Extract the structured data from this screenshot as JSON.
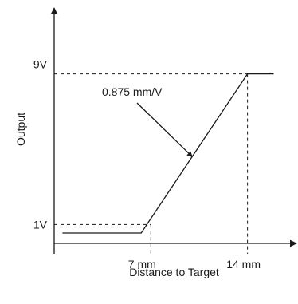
{
  "chart_data": {
    "type": "line",
    "title": "",
    "xlabel": "Distance to Target",
    "ylabel": "Output",
    "x_tick_labels": [
      "7 mm",
      "14 mm"
    ],
    "y_tick_labels": [
      "1V",
      "9V"
    ],
    "x_ticks": [
      7,
      14
    ],
    "y_ticks": [
      1,
      9
    ],
    "xlim": [
      0,
      17.6
    ],
    "ylim": [
      -0.55,
      12.5
    ],
    "series": [
      {
        "x": [
          0.6,
          6.3,
          14.0,
          15.9
        ],
        "y": [
          0.55,
          0.55,
          9.0,
          9.0
        ]
      }
    ],
    "annotation": {
      "text": "0.875 mm/V",
      "target_x": 10.0,
      "target_y": 4.6
    },
    "grid": false,
    "legend": "none",
    "colors": {
      "line": "#1a1a1a",
      "background": "#ffffff"
    }
  }
}
